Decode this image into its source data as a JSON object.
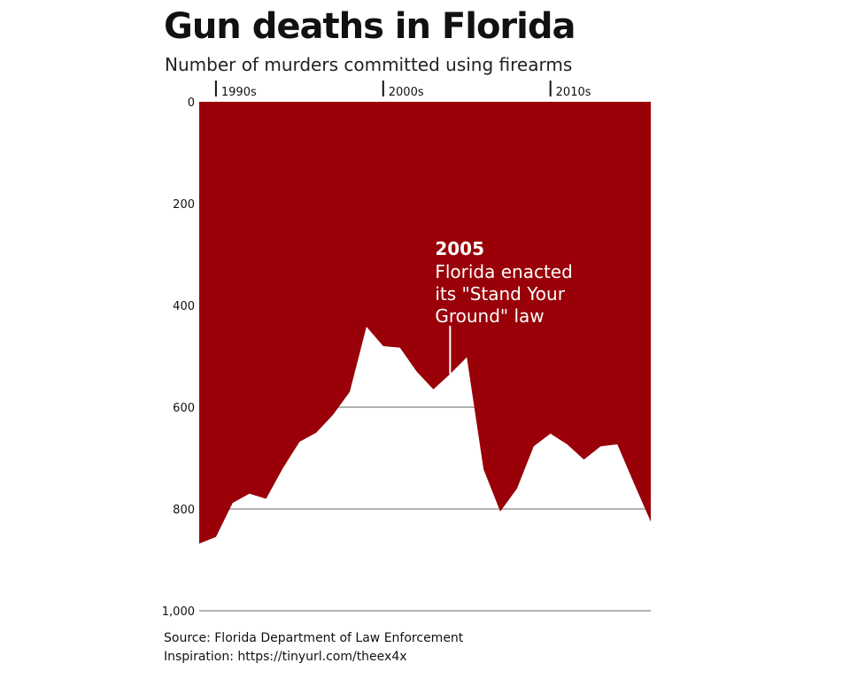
{
  "title": "Gun deaths in Florida",
  "subtitle": "Number of murders committed using firearms",
  "source": {
    "line1": "Source: Florida Department of Law Enforcement",
    "line2": "Inspiration: https://tinyurl.com/theex4x"
  },
  "colors": {
    "fill": "#990008",
    "grid": "#b3b3b3",
    "annotation_text": "#ffffff",
    "text": "#111111"
  },
  "annotation": {
    "year": 2005,
    "heading": "2005",
    "lines": [
      "Florida enacted",
      "its \"Stand Your",
      "Ground\" law"
    ]
  },
  "chart_data": {
    "type": "area",
    "title": "Gun deaths in Florida",
    "subtitle": "Number of murders committed using firearms",
    "y_inverted": true,
    "ylim": [
      0,
      1000
    ],
    "xlim": [
      1990,
      2017
    ],
    "yticks": [
      0,
      200,
      400,
      600,
      800,
      1000
    ],
    "ytick_labels": [
      "0",
      "200",
      "400",
      "600",
      "800",
      "1,000"
    ],
    "gridlines": [
      600,
      800,
      1000
    ],
    "decade_ticks": [
      {
        "year": 1991,
        "label": "1990s"
      },
      {
        "year": 2001,
        "label": "2000s"
      },
      {
        "year": 2011,
        "label": "2010s"
      }
    ],
    "x": [
      1990,
      1991,
      1992,
      1993,
      1994,
      1995,
      1996,
      1997,
      1998,
      1999,
      2000,
      2001,
      2002,
      2003,
      2004,
      2005,
      2006,
      2007,
      2008,
      2009,
      2010,
      2011,
      2012,
      2013,
      2014,
      2015,
      2016,
      2017
    ],
    "values": [
      868,
      855,
      788,
      770,
      780,
      720,
      668,
      650,
      615,
      570,
      442,
      480,
      483,
      530,
      565,
      535,
      502,
      722,
      805,
      760,
      677,
      652,
      673,
      703,
      677,
      673,
      750,
      825
    ]
  }
}
